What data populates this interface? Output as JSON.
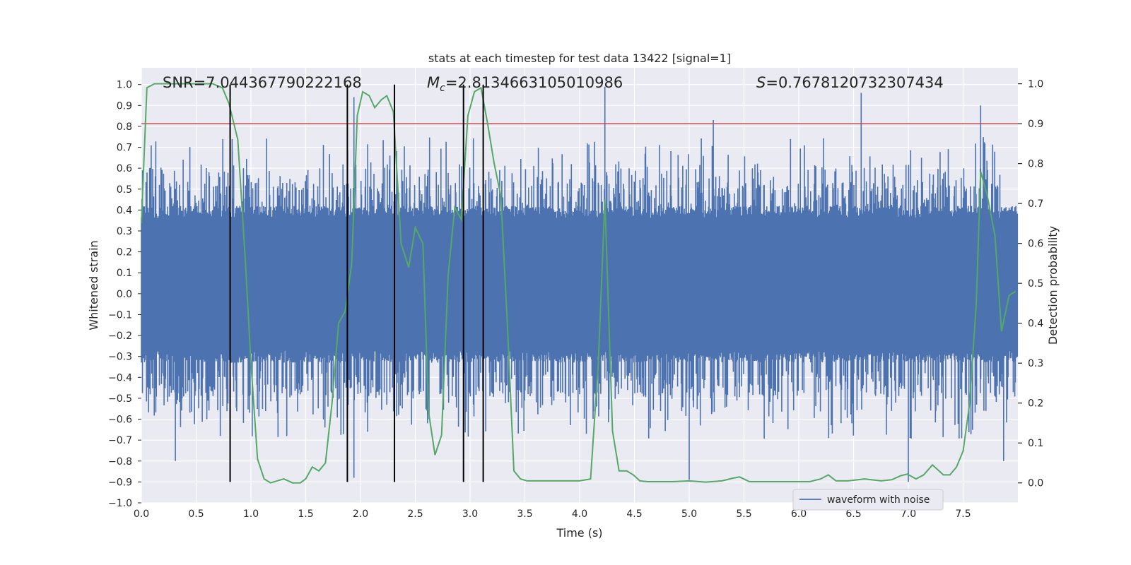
{
  "chart_data": {
    "type": "line",
    "title": "stats at each timestep for test data 13422 [signal=1]",
    "xlabel": "Time (s)",
    "ylabel": "Whitened strain",
    "ylabel_right": "Detection probability",
    "xlim": [
      0.0,
      8.0
    ],
    "ylim": [
      -1.0,
      1.08
    ],
    "ylim_right": [
      -0.05,
      1.04
    ],
    "x_ticks": [
      "0.0",
      "0.5",
      "1.0",
      "1.5",
      "2.0",
      "2.5",
      "3.0",
      "3.5",
      "4.0",
      "4.5",
      "5.0",
      "5.5",
      "6.0",
      "6.5",
      "7.0",
      "7.5"
    ],
    "y_ticks": [
      "1.0",
      "0.9",
      "0.8",
      "0.7",
      "0.6",
      "0.5",
      "0.4",
      "0.3",
      "0.2",
      "0.1",
      "0.0",
      "−0.1",
      "−0.2",
      "−0.3",
      "−0.4",
      "−0.5",
      "−0.6",
      "−0.7",
      "−0.8",
      "−0.9",
      "−1.0"
    ],
    "y_ticks_right": [
      "1.0",
      "0.9",
      "0.8",
      "0.7",
      "0.6",
      "0.5",
      "0.4",
      "0.3",
      "0.2",
      "0.1",
      "0.0"
    ],
    "grid": true,
    "annotations": {
      "snr": "SNR=7.044367790222168",
      "mc_symbol": "M",
      "mc_sub": "c",
      "mc_value": "=2.8134663105010986",
      "s_symbol": "S",
      "s_value": "=0.7678120732307434"
    },
    "legend": {
      "placement": "lower-right",
      "entries": [
        "waveform with noise"
      ]
    },
    "threshold": {
      "value": 0.9,
      "axis": "right",
      "color": "#c44e52"
    },
    "vlines": {
      "x": [
        0.81,
        1.88,
        2.31,
        2.94,
        3.12
      ],
      "y_range": [
        -0.9,
        1.0
      ],
      "color": "#000000"
    },
    "series": [
      {
        "name": "waveform with noise",
        "axis": "left",
        "color": "#4c72b0",
        "kind": "noise-envelope",
        "core_band": [
          -0.33,
          0.42
        ],
        "typical_band": [
          -0.6,
          0.65
        ],
        "peaks": [
          {
            "x": 0.83,
            "y": 0.68
          },
          {
            "x": 1.94,
            "y": 0.94
          },
          {
            "x": 1.94,
            "y": -0.88
          },
          {
            "x": 4.23,
            "y": 0.99
          },
          {
            "x": 5.0,
            "y": -0.89
          },
          {
            "x": 5.22,
            "y": 0.83
          },
          {
            "x": 6.57,
            "y": 0.96
          },
          {
            "x": 7.0,
            "y": -0.9
          },
          {
            "x": 7.66,
            "y": 0.9
          },
          {
            "x": 0.31,
            "y": -0.8
          },
          {
            "x": 7.87,
            "y": -0.8
          }
        ]
      },
      {
        "name": "detection probability",
        "axis": "right",
        "color": "#55a868",
        "x": [
          0.0,
          0.05,
          0.12,
          0.3,
          0.5,
          0.65,
          0.74,
          0.8,
          0.88,
          0.95,
          1.0,
          1.06,
          1.12,
          1.18,
          1.3,
          1.38,
          1.45,
          1.5,
          1.56,
          1.62,
          1.68,
          1.74,
          1.8,
          1.86,
          1.92,
          1.97,
          2.02,
          2.08,
          2.13,
          2.19,
          2.24,
          2.3,
          2.37,
          2.44,
          2.5,
          2.57,
          2.62,
          2.68,
          2.74,
          2.8,
          2.86,
          2.92,
          2.98,
          3.04,
          3.1,
          3.16,
          3.22,
          3.28,
          3.34,
          3.4,
          3.46,
          3.52,
          3.6,
          3.8,
          4.0,
          4.1,
          4.17,
          4.23,
          4.3,
          4.36,
          4.43,
          4.49,
          4.55,
          4.62,
          4.7,
          4.85,
          5.0,
          5.15,
          5.3,
          5.4,
          5.46,
          5.55,
          5.7,
          5.9,
          6.1,
          6.2,
          6.27,
          6.34,
          6.45,
          6.6,
          6.75,
          6.85,
          6.93,
          6.99,
          7.07,
          7.14,
          7.22,
          7.32,
          7.38,
          7.44,
          7.5,
          7.56,
          7.62,
          7.66,
          7.72,
          7.79,
          7.85,
          7.92,
          7.98
        ],
        "y": [
          0.65,
          0.99,
          1.0,
          1.0,
          1.0,
          1.0,
          0.99,
          0.95,
          0.86,
          0.55,
          0.3,
          0.06,
          0.01,
          0.0,
          0.01,
          0.0,
          0.0,
          0.01,
          0.04,
          0.03,
          0.05,
          0.2,
          0.4,
          0.43,
          0.55,
          0.92,
          0.98,
          0.97,
          0.94,
          0.96,
          0.97,
          0.93,
          0.6,
          0.54,
          0.64,
          0.6,
          0.18,
          0.07,
          0.12,
          0.52,
          0.69,
          0.66,
          0.92,
          0.98,
          0.99,
          0.9,
          0.8,
          0.72,
          0.4,
          0.03,
          0.01,
          0.005,
          0.005,
          0.005,
          0.005,
          0.01,
          0.3,
          0.71,
          0.13,
          0.03,
          0.03,
          0.02,
          0.005,
          0.003,
          0.003,
          0.003,
          0.005,
          0.002,
          0.005,
          0.012,
          0.015,
          0.003,
          0.003,
          0.003,
          0.003,
          0.01,
          0.02,
          0.005,
          0.005,
          0.01,
          0.005,
          0.008,
          0.018,
          0.022,
          0.01,
          0.02,
          0.045,
          0.02,
          0.02,
          0.04,
          0.08,
          0.2,
          0.45,
          0.78,
          0.72,
          0.62,
          0.38,
          0.47,
          0.48
        ]
      }
    ]
  }
}
